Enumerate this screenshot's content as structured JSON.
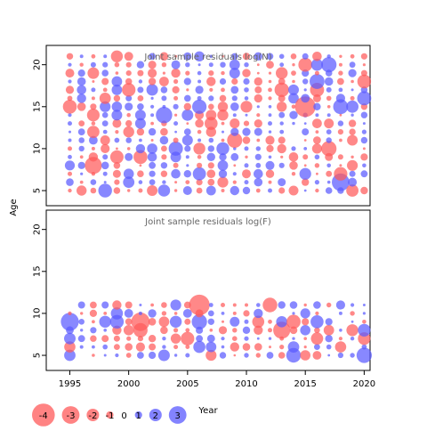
{
  "chart_data": {
    "type": "scatter",
    "encoding": "bubble size = |residual|, red = negative, blue = positive",
    "shared_x": {
      "label": "Year",
      "range": [
        1993,
        2020.5
      ],
      "ticks": [
        1995,
        2000,
        2005,
        2010,
        2015,
        2020
      ],
      "tick_labels": [
        "1995",
        "2000",
        "2005",
        "2010",
        "2015",
        "2020"
      ]
    },
    "shared_y": {
      "label": "Age",
      "ticks": [
        5,
        10,
        15,
        20
      ],
      "tick_labels": [
        "5",
        "10",
        "15",
        "20"
      ]
    },
    "colors": {
      "negative": "#ff5a5a",
      "positive": "#5a5aff"
    },
    "panels": [
      {
        "title": "Joint sample residuals log(N)",
        "ylim": [
          3.2,
          22.3
        ],
        "years": [
          1994,
          2019
        ],
        "ages": [
          5,
          21
        ]
      },
      {
        "title": "Joint sample residuals log(F)",
        "ylim": [
          3.2,
          22.3
        ],
        "years": [
          1994,
          2019
        ],
        "ages": [
          5,
          11
        ]
      }
    ],
    "legend": {
      "position": "bottom-left",
      "items": [
        {
          "label": "-4",
          "value": -4
        },
        {
          "label": "-3",
          "value": -3
        },
        {
          "label": "-2",
          "value": -2
        },
        {
          "label": "-1",
          "value": -1
        },
        {
          "label": "0",
          "value": 0
        },
        {
          "label": "1",
          "value": 1
        },
        {
          "label": "2",
          "value": 2
        },
        {
          "label": "3",
          "value": 3
        }
      ]
    }
  }
}
